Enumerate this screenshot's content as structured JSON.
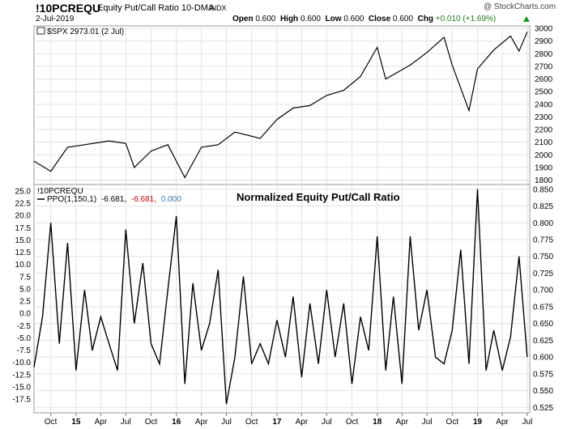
{
  "header": {
    "symbol": "!10PCREQU",
    "description": "Equity Put/Call Ratio 10-DMA",
    "exchange": "INDX",
    "date": "2-Jul-2019",
    "watermark": "@ StockCharts.com",
    "open_label": "Open",
    "open": "0.600",
    "high_label": "High",
    "high": "0.600",
    "low_label": "Low",
    "low": "0.600",
    "close_label": "Close",
    "close": "0.600",
    "chg_label": "Chg",
    "chg": "+0.010 (+1.69%)"
  },
  "colors": {
    "line": "#000000",
    "grid": "#dddddd",
    "frame": "#999999",
    "signal_red": "#cc0000",
    "hist_blue": "#3a7ab8",
    "up_green": "#1a9a1a"
  },
  "chart_data": [
    {
      "type": "line",
      "legend": "$SPX 2973.01 (2 Jul)",
      "yticks": [
        1800,
        1900,
        2000,
        2100,
        2200,
        2300,
        2400,
        2500,
        2600,
        2700,
        2800,
        2900,
        3000
      ],
      "ylim": [
        1765,
        3020
      ],
      "x": [
        "2014-08",
        "2014-10",
        "2014-12",
        "2015-02",
        "2015-05",
        "2015-07",
        "2015-08",
        "2015-10",
        "2015-12",
        "2016-02",
        "2016-04",
        "2016-06",
        "2016-08",
        "2016-11",
        "2017-01",
        "2017-03",
        "2017-05",
        "2017-07",
        "2017-09",
        "2017-11",
        "2018-01",
        "2018-02",
        "2018-05",
        "2018-07",
        "2018-09",
        "2018-10",
        "2018-12",
        "2019-01",
        "2019-03",
        "2019-05",
        "2019-06",
        "2019-07"
      ],
      "values": [
        1950,
        1870,
        2060,
        2080,
        2110,
        2090,
        1900,
        2030,
        2080,
        1820,
        2060,
        2080,
        2180,
        2130,
        2280,
        2370,
        2390,
        2470,
        2510,
        2620,
        2850,
        2600,
        2710,
        2810,
        2930,
        2710,
        2350,
        2680,
        2830,
        2940,
        2820,
        2973
      ]
    },
    {
      "type": "line",
      "title": "Normalized Equity Put/Call Ratio",
      "legend_symbol": "!10PCREQU",
      "legend_ppo": "PPO(1,150,1)",
      "legend_v1": "-6.681,",
      "legend_v2": "-6.681,",
      "legend_v3": "0.000",
      "yticks_left": [
        25.0,
        22.5,
        20.0,
        17.5,
        15.0,
        12.5,
        10.0,
        7.5,
        5.0,
        2.5,
        0.0,
        -2.5,
        -5.0,
        -7.5,
        -10.0,
        -12.5,
        -15.0,
        -17.5
      ],
      "yticks_left_labels": [
        "25.0",
        "22.5",
        "20.0",
        "17.5",
        "15.0",
        "12.5",
        "10.0",
        "7.5",
        "5.0",
        "2.5",
        "0.0",
        "-2.5",
        "-5.0",
        "-7.5",
        "-10.0",
        "-12.5",
        "-15.0",
        "-17.5"
      ],
      "yticks_right": [
        0.85,
        0.825,
        0.8,
        0.775,
        0.75,
        0.725,
        0.7,
        0.675,
        0.65,
        0.625,
        0.6,
        0.575,
        0.55,
        0.525
      ],
      "yticks_right_labels": [
        "0.850",
        "0.825",
        "0.800",
        "0.775",
        "0.750",
        "0.725",
        "0.700",
        "0.675",
        "0.650",
        "0.625",
        "0.600",
        "0.575",
        "0.550",
        "0.525"
      ],
      "ylim_right": [
        0.517,
        0.857
      ],
      "x": [
        "2014-08",
        "2014-09",
        "2014-10",
        "2014-11",
        "2014-12",
        "2015-01",
        "2015-02",
        "2015-03",
        "2015-04",
        "2015-05",
        "2015-06",
        "2015-07",
        "2015-08",
        "2015-09",
        "2015-10",
        "2015-11",
        "2015-12",
        "2016-01",
        "2016-02",
        "2016-03",
        "2016-04",
        "2016-05",
        "2016-06",
        "2016-07",
        "2016-08",
        "2016-09",
        "2016-10",
        "2016-11",
        "2016-12",
        "2017-01",
        "2017-02",
        "2017-03",
        "2017-04",
        "2017-05",
        "2017-06",
        "2017-07",
        "2017-08",
        "2017-09",
        "2017-10",
        "2017-11",
        "2017-12",
        "2018-01",
        "2018-02",
        "2018-03",
        "2018-04",
        "2018-05",
        "2018-06",
        "2018-07",
        "2018-08",
        "2018-09",
        "2018-10",
        "2018-11",
        "2018-12",
        "2019-01",
        "2019-02",
        "2019-03",
        "2019-04",
        "2019-05",
        "2019-06",
        "2019-07"
      ],
      "values": [
        0.585,
        0.66,
        0.8,
        0.62,
        0.77,
        0.58,
        0.7,
        0.61,
        0.66,
        0.62,
        0.58,
        0.79,
        0.65,
        0.74,
        0.62,
        0.59,
        0.7,
        0.81,
        0.56,
        0.71,
        0.61,
        0.65,
        0.73,
        0.53,
        0.6,
        0.72,
        0.59,
        0.62,
        0.59,
        0.655,
        0.6,
        0.69,
        0.57,
        0.68,
        0.59,
        0.7,
        0.6,
        0.68,
        0.56,
        0.66,
        0.61,
        0.78,
        0.58,
        0.69,
        0.56,
        0.78,
        0.64,
        0.7,
        0.6,
        0.59,
        0.64,
        0.76,
        0.59,
        0.85,
        0.58,
        0.64,
        0.58,
        0.63,
        0.75,
        0.6
      ]
    }
  ],
  "x_axis": {
    "labels": [
      "Oct",
      "15",
      "Apr",
      "Jul",
      "Oct",
      "16",
      "Apr",
      "Jul",
      "Oct",
      "17",
      "Apr",
      "Jul",
      "Oct",
      "18",
      "Apr",
      "Jul",
      "Oct",
      "19",
      "Apr",
      "Jul"
    ],
    "dates": [
      "2014-10",
      "2015-01",
      "2015-04",
      "2015-07",
      "2015-10",
      "2016-01",
      "2016-04",
      "2016-07",
      "2016-10",
      "2017-01",
      "2017-04",
      "2017-07",
      "2017-10",
      "2018-01",
      "2018-04",
      "2018-07",
      "2018-10",
      "2019-01",
      "2019-04",
      "2019-07"
    ]
  }
}
